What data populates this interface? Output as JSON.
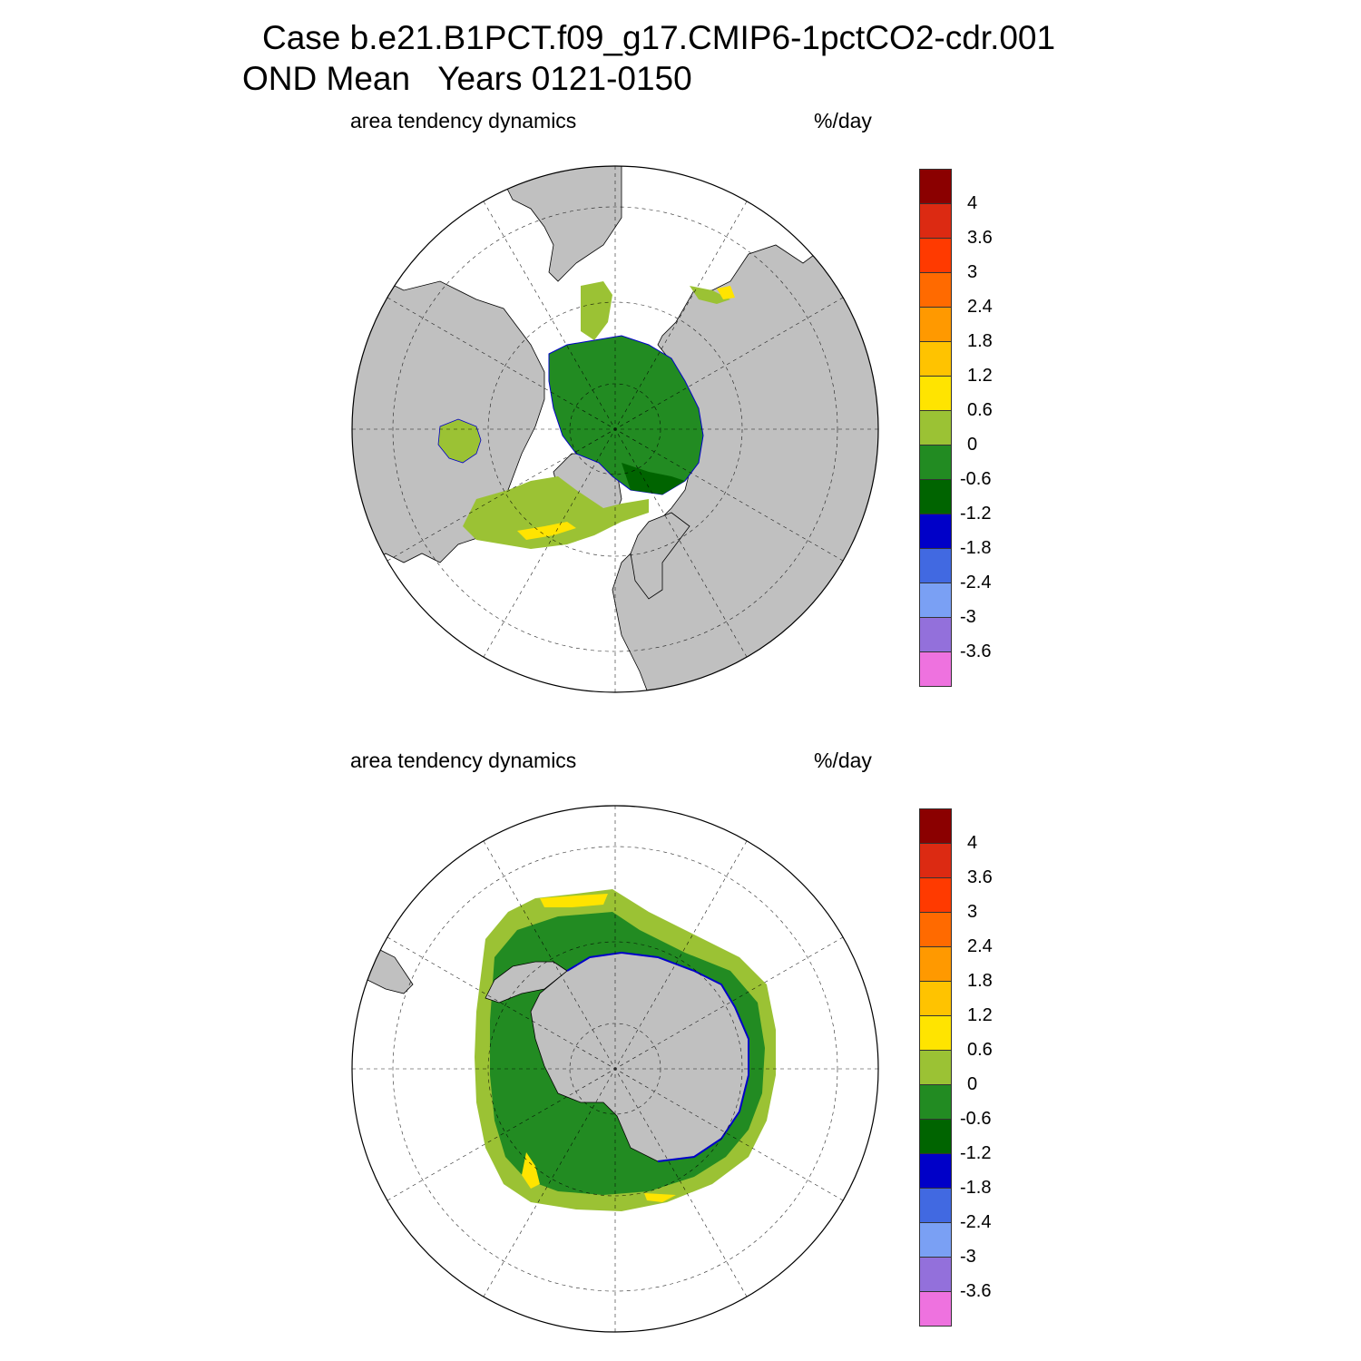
{
  "title": {
    "line1": "Case b.e21.B1PCT.f09_g17.CMIP6-1pctCO2-cdr.001",
    "line2": "OND Mean   Years 0121-0150"
  },
  "panels": [
    {
      "id": "nh",
      "hemisphere": "north",
      "left_label": "area tendency dynamics",
      "right_label": "%/day"
    },
    {
      "id": "sh",
      "hemisphere": "south",
      "left_label": "area tendency dynamics",
      "right_label": "%/day"
    }
  ],
  "colorbar": {
    "labels": [
      "4",
      "3.6",
      "3",
      "2.4",
      "1.8",
      "1.2",
      "0.6",
      "0",
      "-0.6",
      "-1.2",
      "-1.8",
      "-2.4",
      "-3",
      "-3.6"
    ],
    "colors": [
      "#8b0000",
      "#dc2a12",
      "#ff3a00",
      "#ff6a00",
      "#ff9900",
      "#ffc300",
      "#ffe400",
      "#9bc234",
      "#228b22",
      "#006400",
      "#0000c8",
      "#4169e1",
      "#7aa0f4",
      "#9370db",
      "#ee72df"
    ]
  },
  "colors": {
    "land": "#c0c0c0",
    "ocean": "#ffffff",
    "field_dark": "#006400",
    "field_green": "#228b22",
    "field_light": "#9bc234",
    "field_yellow": "#ffe400",
    "field_blue": "#0000c8"
  }
}
